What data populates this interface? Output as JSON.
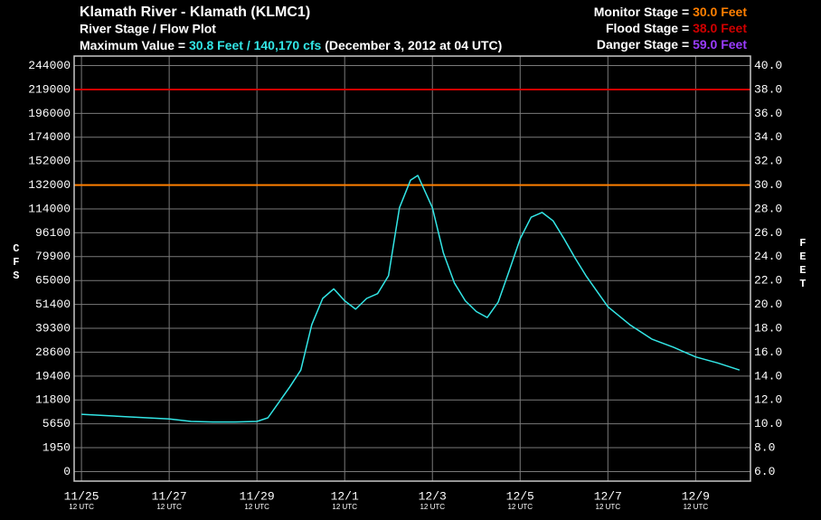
{
  "chart_data": {
    "type": "line",
    "title": "Klamath River - Klamath (KLMC1)",
    "subtitle": "River Stage / Flow Plot",
    "max_prefix": "Maximum Value =",
    "max_value": "30.8 Feet / 140,170 cfs",
    "max_time": "(December 3, 2012 at 04 UTC)",
    "thresholds": [
      {
        "text": "Monitor Stage =",
        "value": 30,
        "label": "30.0 Feet",
        "color": "#ff7f00"
      },
      {
        "text": "Flood Stage =",
        "value": 38,
        "label": "38.0 Feet",
        "color": "#d00000"
      },
      {
        "text": "Danger Stage =",
        "value": 59,
        "label": "59.0 Feet",
        "color": "#9a3cff"
      }
    ],
    "y_label": "CFS",
    "y2_label": "FEET",
    "x": [
      "11/25 12",
      "11/26 12",
      "11/27 12",
      "11/28 00",
      "11/28 12",
      "11/29 00",
      "11/29 12",
      "11/29 18",
      "11/30 00",
      "11/30 06",
      "11/30 12",
      "11/30 18",
      "12/01 00",
      "12/01 06",
      "12/01 12",
      "12/01 18",
      "12/02 00",
      "12/02 06",
      "12/02 12",
      "12/02 18",
      "12/03 00",
      "12/03 04",
      "12/03 12",
      "12/03 18",
      "12/04 00",
      "12/04 06",
      "12/04 12",
      "12/04 18",
      "12/05 00",
      "12/05 06",
      "12/05 12",
      "12/05 18",
      "12/06 00",
      "12/06 06",
      "12/06 12",
      "12/06 18",
      "12/07 00",
      "12/07 12",
      "12/08 00",
      "12/08 12",
      "12/09 00",
      "12/09 12",
      "12/10 00",
      "12/10 12"
    ],
    "series": [
      {
        "name": "Stage",
        "color": "#33e6e6",
        "values": [
          10.8,
          10.6,
          10.4,
          10.2,
          10.15,
          10.15,
          10.2,
          10.5,
          11.8,
          13.1,
          14.5,
          18.3,
          20.5,
          21.3,
          20.3,
          19.6,
          20.5,
          20.9,
          22.4,
          28.1,
          30.4,
          30.8,
          28.1,
          24.3,
          21.8,
          20.3,
          19.4,
          18.9,
          20.2,
          22.8,
          25.5,
          27.3,
          27.7,
          27.0,
          25.5,
          23.9,
          22.4,
          19.8,
          18.3,
          17.1,
          16.4,
          15.6,
          15.1,
          14.5
        ]
      }
    ],
    "xlim": [
      "11/25 08",
      "12/10 18"
    ],
    "xticks": [
      {
        "value": "11/25 12",
        "label": "11/25"
      },
      {
        "value": "11/27 12",
        "label": "11/27"
      },
      {
        "value": "11/29 12",
        "label": "11/29"
      },
      {
        "value": "12/01 12",
        "label": "12/1"
      },
      {
        "value": "12/03 12",
        "label": "12/3"
      },
      {
        "value": "12/05 12",
        "label": "12/5"
      },
      {
        "value": "12/07 12",
        "label": "12/7"
      },
      {
        "value": "12/09 12",
        "label": "12/9"
      }
    ],
    "xtick_sublabel": "12 UTC",
    "ylim": [
      5.2,
      40.8
    ],
    "yticks": [
      {
        "value": 40,
        "label": "40.0"
      },
      {
        "value": 38,
        "label": "38.0"
      },
      {
        "value": 36,
        "label": "36.0"
      },
      {
        "value": 34,
        "label": "34.0"
      },
      {
        "value": 32,
        "label": "32.0"
      },
      {
        "value": 30,
        "label": "30.0"
      },
      {
        "value": 28,
        "label": "28.0"
      },
      {
        "value": 26,
        "label": "26.0"
      },
      {
        "value": 24,
        "label": "24.0"
      },
      {
        "value": 22,
        "label": "22.0"
      },
      {
        "value": 20,
        "label": "20.0"
      },
      {
        "value": 18,
        "label": "18.0"
      },
      {
        "value": 16,
        "label": "16.0"
      },
      {
        "value": 14,
        "label": "14.0"
      },
      {
        "value": 12,
        "label": "12.0"
      },
      {
        "value": 10,
        "label": "10.0"
      },
      {
        "value": 8,
        "label": "8.0"
      },
      {
        "value": 6,
        "label": "6.0"
      }
    ],
    "cfs_ticks": [
      244000,
      219000,
      196000,
      174000,
      152000,
      132000,
      114000,
      96100,
      79900,
      65000,
      51400,
      39300,
      28600,
      19400,
      11800,
      5650,
      1950,
      0
    ],
    "grid": true
  }
}
